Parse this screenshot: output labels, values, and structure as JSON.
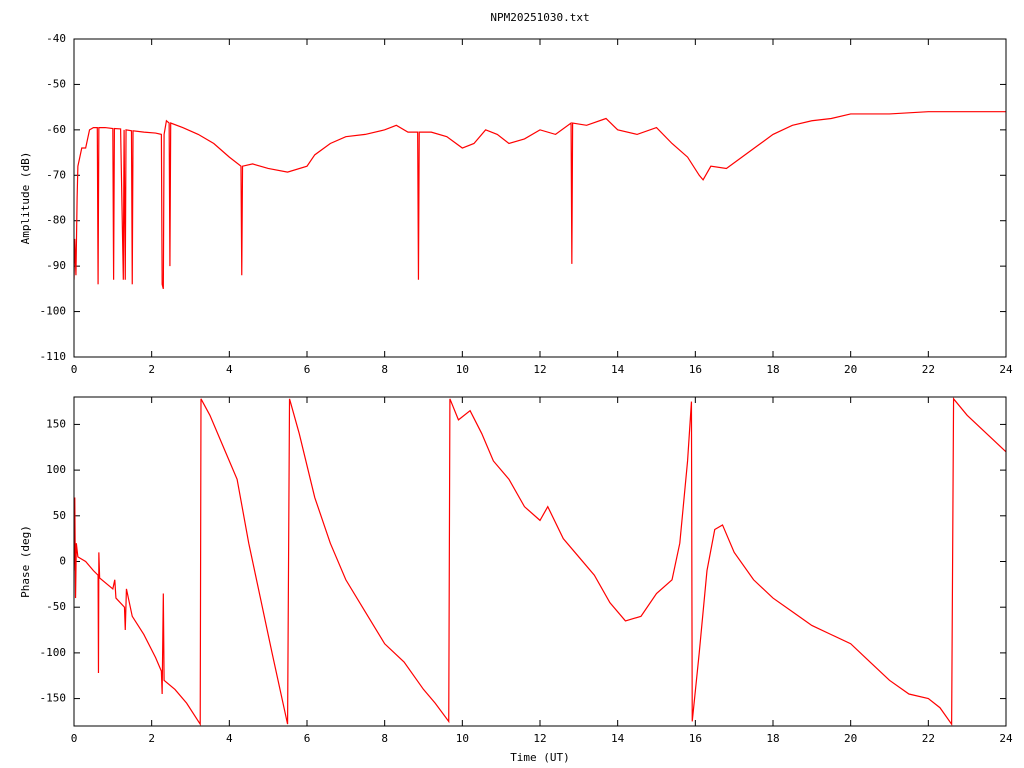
{
  "chart_data": [
    {
      "type": "line",
      "title": "NPM20251030.txt",
      "y_label": "Amplitude (dB)",
      "x": [
        0,
        0.02,
        0.05,
        0.08,
        0.1,
        0.15,
        0.2,
        0.3,
        0.4,
        0.5,
        0.6,
        0.62,
        0.64,
        0.8,
        1.0,
        1.02,
        1.04,
        1.2,
        1.27,
        1.29,
        1.32,
        1.34,
        1.48,
        1.5,
        1.52,
        1.8,
        2.1,
        2.25,
        2.27,
        2.3,
        2.32,
        2.38,
        2.45,
        2.47,
        2.49,
        2.8,
        3.2,
        3.6,
        4.0,
        4.3,
        4.32,
        4.34,
        4.6,
        5.0,
        5.5,
        6.0,
        6.2,
        6.6,
        7.0,
        7.5,
        8.0,
        8.3,
        8.6,
        8.85,
        8.87,
        8.89,
        9.2,
        9.6,
        10.0,
        10.3,
        10.6,
        10.9,
        11.2,
        11.6,
        12.0,
        12.4,
        12.8,
        12.82,
        12.84,
        13.2,
        13.7,
        14.0,
        14.5,
        15.0,
        15.4,
        15.8,
        16.1,
        16.2,
        16.4,
        16.8,
        17.2,
        17.6,
        18.0,
        18.5,
        19.0,
        19.5,
        20.0,
        20.5,
        21.0,
        22.0,
        23.0,
        24.0
      ],
      "values": [
        -93,
        -84,
        -92,
        -75,
        -68,
        -66,
        -64,
        -64,
        -60,
        -59.5,
        -59.5,
        -94,
        -59.5,
        -59.5,
        -59.7,
        -93,
        -59.7,
        -59.8,
        -93,
        -60,
        -93,
        -60,
        -60.2,
        -94,
        -60.2,
        -60.5,
        -60.7,
        -61,
        -94,
        -95,
        -61,
        -58,
        -58.5,
        -90,
        -58.5,
        -59.5,
        -61,
        -63,
        -66,
        -68,
        -92,
        -68,
        -67.5,
        -68.5,
        -69.3,
        -68,
        -65.5,
        -63,
        -61.5,
        -61,
        -60,
        -59,
        -60.5,
        -60.5,
        -93,
        -60.5,
        -60.5,
        -61.5,
        -64,
        -63,
        -60,
        -61,
        -63,
        -62,
        -60,
        -61,
        -58.5,
        -89.5,
        -58.5,
        -59,
        -57.5,
        -60,
        -61,
        -59.5,
        -63,
        -66,
        -70,
        -71,
        -68,
        -68.5,
        -66,
        -63.5,
        -61,
        -59,
        -58,
        -57.5,
        -56.5,
        -56.5,
        -56.5,
        -56,
        -56,
        -56
      ],
      "color": "#ff0000",
      "xlim": [
        0,
        24
      ],
      "xticks": [
        0,
        2,
        4,
        6,
        8,
        10,
        12,
        14,
        16,
        18,
        20,
        22,
        24
      ],
      "ylim": [
        -110,
        -40
      ],
      "yticks": [
        -40,
        -50,
        -60,
        -70,
        -80,
        -90,
        -100,
        -110
      ]
    },
    {
      "type": "line",
      "x_label": "Time (UT)",
      "y_label": "Phase (deg)",
      "x": [
        0,
        0.02,
        0.04,
        0.06,
        0.1,
        0.3,
        0.5,
        0.62,
        0.63,
        0.64,
        0.66,
        1.0,
        1.05,
        1.08,
        1.3,
        1.32,
        1.35,
        1.5,
        1.8,
        2.1,
        2.25,
        2.27,
        2.3,
        2.32,
        2.6,
        2.9,
        3.25,
        3.27,
        3.5,
        3.9,
        4.2,
        4.5,
        4.8,
        5.1,
        5.5,
        5.55,
        5.8,
        6.2,
        6.6,
        7.0,
        7.5,
        8.0,
        8.5,
        9.0,
        9.3,
        9.65,
        9.68,
        9.9,
        10.2,
        10.5,
        10.8,
        11.2,
        11.6,
        12.0,
        12.2,
        12.6,
        13.0,
        13.4,
        13.8,
        14.2,
        14.6,
        15.0,
        15.4,
        15.6,
        15.8,
        15.9,
        15.92,
        16.1,
        16.3,
        16.5,
        16.7,
        17.0,
        17.5,
        18.0,
        18.5,
        19.0,
        19.5,
        20.0,
        20.5,
        21.0,
        21.5,
        22.0,
        22.3,
        22.6,
        22.65,
        23.0,
        23.5,
        24
      ],
      "values": [
        -10,
        70,
        -40,
        20,
        5,
        0,
        -10,
        -15,
        -122,
        10,
        -18,
        -30,
        -20,
        -40,
        -50,
        -75,
        -30,
        -60,
        -80,
        -105,
        -120,
        -145,
        -35,
        -130,
        -140,
        -155,
        -178,
        178,
        160,
        120,
        90,
        20,
        -40,
        -100,
        -178,
        178,
        140,
        70,
        20,
        -20,
        -55,
        -90,
        -110,
        -140,
        -155,
        -175,
        178,
        155,
        165,
        140,
        110,
        90,
        60,
        45,
        60,
        25,
        5,
        -15,
        -45,
        -65,
        -60,
        -35,
        -20,
        20,
        110,
        175,
        -175,
        -100,
        -10,
        35,
        40,
        10,
        -20,
        -40,
        -55,
        -70,
        -80,
        -90,
        -110,
        -130,
        -145,
        -150,
        -160,
        -178,
        178,
        160,
        140,
        120
      ],
      "color": "#ff0000",
      "xlim": [
        0,
        24
      ],
      "xticks": [
        0,
        2,
        4,
        6,
        8,
        10,
        12,
        14,
        16,
        18,
        20,
        22,
        24
      ],
      "ylim": [
        -180,
        180
      ],
      "yticks": [
        150,
        100,
        50,
        0,
        -50,
        -100,
        -150
      ]
    }
  ]
}
